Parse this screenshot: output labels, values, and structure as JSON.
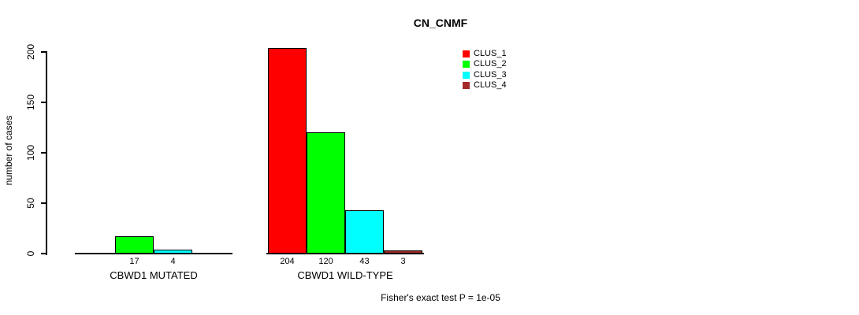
{
  "title": "CN_CNMF",
  "ylabel": "number of cases",
  "footer": "Fisher's exact test P = 1e-05",
  "legend": {
    "items": [
      {
        "label": "CLUS_1",
        "color": "#FF0000"
      },
      {
        "label": "CLUS_2",
        "color": "#00FF00"
      },
      {
        "label": "CLUS_3",
        "color": "#00FFFF"
      },
      {
        "label": "CLUS_4",
        "color": "#A52A2A"
      }
    ]
  },
  "chart_data": {
    "type": "bar",
    "title": "CN_CNMF",
    "ylabel": "number of cases",
    "xlabel": "",
    "ylim": [
      0,
      200
    ],
    "yticks": [
      0,
      50,
      100,
      150,
      200
    ],
    "grid": false,
    "legend_position": "top-right",
    "categories": [
      "CBWD1 MUTATED",
      "CBWD1 WILD-TYPE"
    ],
    "series": [
      {
        "name": "CLUS_1",
        "color": "#FF0000",
        "values": [
          0,
          204
        ]
      },
      {
        "name": "CLUS_2",
        "color": "#00FF00",
        "values": [
          17,
          120
        ]
      },
      {
        "name": "CLUS_3",
        "color": "#00FFFF",
        "values": [
          4,
          43
        ]
      },
      {
        "name": "CLUS_4",
        "color": "#A52A2A",
        "values": [
          0,
          3
        ]
      }
    ],
    "bar_labels": [
      [
        "",
        "17",
        "4",
        ""
      ],
      [
        "204",
        "120",
        "43",
        "3"
      ]
    ],
    "annotation": "Fisher's exact test P = 1e-05"
  }
}
